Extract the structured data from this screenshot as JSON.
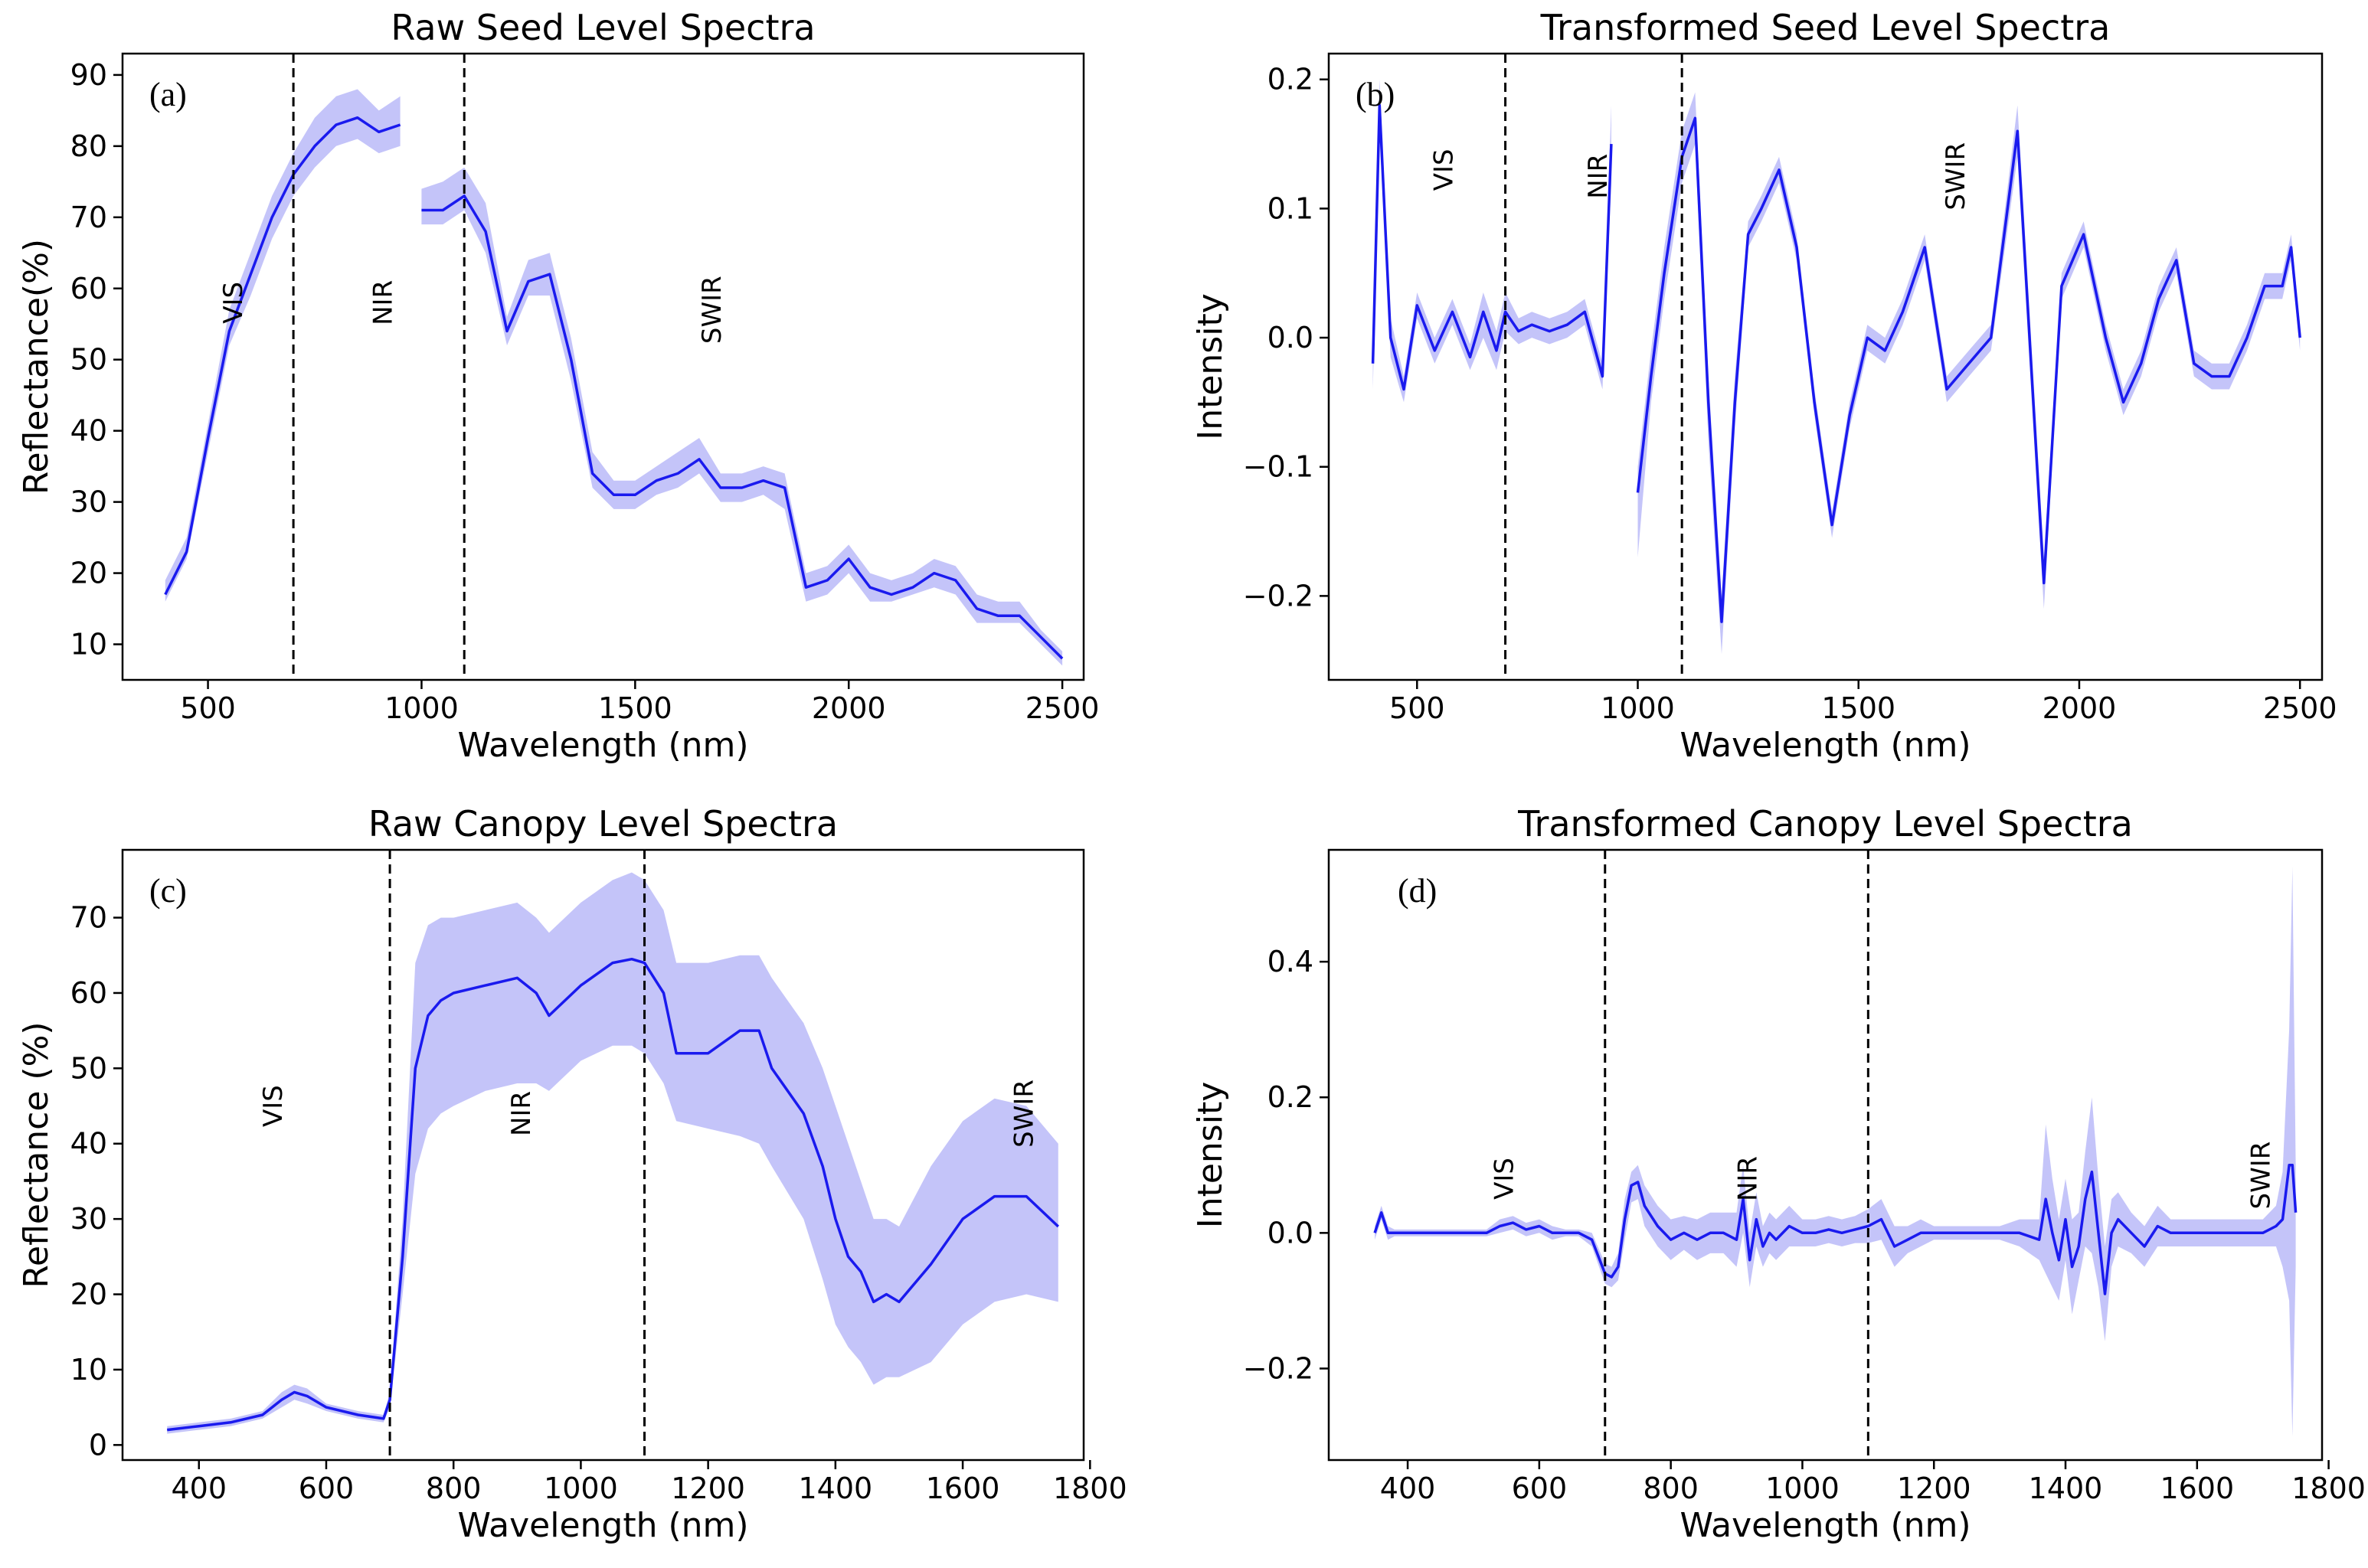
{
  "colors": {
    "line": "#1a1aee",
    "band": "#5555ee"
  },
  "chart_data": [
    {
      "id": "a",
      "type": "line",
      "title": "Raw Seed Level Spectra",
      "panel_label": "(a)",
      "xlabel": "Wavelength (nm)",
      "ylabel": "Reflectance(%)",
      "xlim": [
        300,
        2550
      ],
      "ylim": [
        5,
        93
      ],
      "xticks": [
        500,
        1000,
        1500,
        2000,
        2500
      ],
      "yticks": [
        10,
        20,
        30,
        40,
        50,
        60,
        70,
        80,
        90
      ],
      "vlines": [
        700,
        1100
      ],
      "regions": [
        {
          "label": "VIS",
          "x": 580,
          "y": 58
        },
        {
          "label": "NIR",
          "x": 930,
          "y": 58
        },
        {
          "label": "SWIR",
          "x": 1700,
          "y": 57
        }
      ],
      "series": [
        {
          "x": [
            400,
            450,
            500,
            550,
            600,
            650,
            700,
            750,
            800,
            850,
            900,
            950
          ],
          "mean": [
            17,
            23,
            39,
            54,
            62,
            70,
            76,
            80,
            83,
            84,
            82,
            83
          ],
          "lower": [
            16,
            22,
            37,
            52,
            59,
            67,
            73,
            77,
            80,
            81,
            79,
            80
          ],
          "upper": [
            19,
            25,
            41,
            57,
            65,
            73,
            79,
            84,
            87,
            88,
            85,
            87
          ]
        },
        {
          "x": [
            1000,
            1050,
            1100,
            1150,
            1200,
            1250,
            1300,
            1350,
            1400,
            1450,
            1500,
            1550,
            1600,
            1650,
            1700,
            1750,
            1800,
            1850,
            1900,
            1950,
            2000,
            2050,
            2100,
            2150,
            2200,
            2250,
            2300,
            2350,
            2400,
            2450,
            2500
          ],
          "mean": [
            71,
            71,
            73,
            68,
            54,
            61,
            62,
            50,
            34,
            31,
            31,
            33,
            34,
            36,
            32,
            32,
            33,
            32,
            18,
            19,
            22,
            18,
            17,
            18,
            20,
            19,
            15,
            14,
            14,
            11,
            8
          ],
          "lower": [
            69,
            69,
            71,
            65,
            52,
            59,
            59,
            47,
            32,
            29,
            29,
            31,
            32,
            34,
            30,
            30,
            31,
            29,
            16,
            17,
            20,
            16,
            16,
            17,
            18,
            17,
            13,
            13,
            13,
            10,
            7
          ],
          "upper": [
            74,
            75,
            77,
            72,
            56,
            64,
            65,
            53,
            37,
            33,
            33,
            35,
            37,
            39,
            34,
            34,
            35,
            34,
            20,
            21,
            24,
            20,
            19,
            20,
            22,
            21,
            17,
            16,
            16,
            12,
            9
          ]
        }
      ]
    },
    {
      "id": "b",
      "type": "line",
      "title": "Transformed Seed Level Spectra",
      "panel_label": "(b)",
      "xlabel": "Wavelength (nm)",
      "ylabel": "Intensity",
      "xlim": [
        300,
        2550
      ],
      "ylim": [
        -0.265,
        0.22
      ],
      "xticks": [
        500,
        1000,
        1500,
        2000,
        2500
      ],
      "yticks": [
        -0.2,
        -0.1,
        0.0,
        0.1,
        0.2
      ],
      "vlines": [
        700,
        1100
      ],
      "regions": [
        {
          "label": "VIS",
          "x": 580,
          "y": 0.13
        },
        {
          "label": "NIR",
          "x": 930,
          "y": 0.125
        },
        {
          "label": "SWIR",
          "x": 1740,
          "y": 0.125
        }
      ],
      "series": [
        {
          "x": [
            400,
            415,
            440,
            470,
            500,
            540,
            580,
            620,
            650,
            680,
            700,
            730,
            760,
            800,
            840,
            880,
            920,
            940
          ],
          "mean": [
            -0.02,
            0.18,
            0.0,
            -0.04,
            0.025,
            -0.01,
            0.02,
            -0.015,
            0.02,
            -0.01,
            0.02,
            0.005,
            0.01,
            0.005,
            0.01,
            0.02,
            -0.03,
            0.15
          ],
          "lower": [
            -0.04,
            0.16,
            -0.015,
            -0.05,
            0.015,
            -0.02,
            0.01,
            -0.025,
            0.0,
            -0.025,
            0.005,
            -0.005,
            0.0,
            -0.005,
            0.0,
            0.01,
            -0.04,
            0.12
          ],
          "upper": [
            0.0,
            0.2,
            0.015,
            -0.03,
            0.035,
            0.0,
            0.03,
            -0.005,
            0.035,
            0.005,
            0.035,
            0.015,
            0.02,
            0.015,
            0.02,
            0.03,
            -0.02,
            0.18
          ]
        },
        {
          "x": [
            1000,
            1030,
            1060,
            1100,
            1130,
            1160,
            1190,
            1220,
            1250,
            1280,
            1320,
            1360,
            1400,
            1440,
            1480,
            1520,
            1560,
            1600,
            1650,
            1700,
            1750,
            1800,
            1860,
            1920,
            1960,
            2010,
            2060,
            2100,
            2140,
            2180,
            2220,
            2260,
            2300,
            2340,
            2380,
            2420,
            2460,
            2480,
            2500
          ],
          "mean": [
            -0.12,
            -0.03,
            0.05,
            0.14,
            0.17,
            -0.05,
            -0.22,
            -0.05,
            0.08,
            0.1,
            0.13,
            0.07,
            -0.05,
            -0.145,
            -0.06,
            0.0,
            -0.01,
            0.02,
            0.07,
            -0.04,
            -0.02,
            0.0,
            0.16,
            -0.19,
            0.04,
            0.08,
            0.0,
            -0.05,
            -0.02,
            0.03,
            0.06,
            -0.02,
            -0.03,
            -0.03,
            0.0,
            0.04,
            0.04,
            0.07,
            0.0
          ],
          "lower": [
            -0.17,
            -0.05,
            0.03,
            0.12,
            0.15,
            -0.08,
            -0.245,
            -0.07,
            0.07,
            0.09,
            0.12,
            0.06,
            -0.06,
            -0.155,
            -0.07,
            -0.01,
            -0.02,
            0.01,
            0.06,
            -0.05,
            -0.03,
            -0.01,
            0.14,
            -0.21,
            0.03,
            0.07,
            -0.01,
            -0.06,
            -0.03,
            0.02,
            0.05,
            -0.03,
            -0.04,
            -0.04,
            -0.01,
            0.03,
            0.03,
            0.06,
            -0.01
          ],
          "upper": [
            -0.1,
            -0.01,
            0.07,
            0.16,
            0.19,
            -0.03,
            -0.2,
            -0.03,
            0.09,
            0.11,
            0.14,
            0.08,
            -0.04,
            -0.135,
            -0.05,
            0.01,
            0.0,
            0.03,
            0.08,
            -0.03,
            -0.01,
            0.01,
            0.18,
            -0.17,
            0.05,
            0.09,
            0.01,
            -0.04,
            -0.01,
            0.04,
            0.07,
            -0.01,
            -0.02,
            -0.02,
            0.01,
            0.05,
            0.05,
            0.08,
            0.01
          ]
        }
      ]
    },
    {
      "id": "c",
      "type": "line",
      "title": "Raw Canopy Level Spectra",
      "panel_label": "(c)",
      "xlabel": "Wavelength (nm)",
      "ylabel": "Reflectance (%)",
      "xlim": [
        280,
        1790
      ],
      "ylim": [
        -2,
        79
      ],
      "xticks": [
        400,
        600,
        800,
        1000,
        1200,
        1400,
        1600,
        1800
      ],
      "yticks": [
        0,
        10,
        20,
        30,
        40,
        50,
        60,
        70
      ],
      "vlines": [
        700,
        1100
      ],
      "regions": [
        {
          "label": "VIS",
          "x": 530,
          "y": 45
        },
        {
          "label": "NIR",
          "x": 920,
          "y": 44
        },
        {
          "label": "SWIR",
          "x": 1710,
          "y": 44
        }
      ],
      "series": [
        {
          "x": [
            350,
            400,
            450,
            500,
            530,
            550,
            570,
            600,
            650,
            690,
            700,
            720,
            740,
            760,
            780,
            800,
            850,
            900,
            930,
            950,
            1000,
            1050,
            1080,
            1100,
            1130,
            1150,
            1200,
            1250,
            1280,
            1300,
            1350,
            1380,
            1400,
            1420,
            1440,
            1460,
            1480,
            1500,
            1550,
            1600,
            1650,
            1700,
            1750
          ],
          "mean": [
            2,
            2.5,
            3,
            4,
            6,
            7,
            6.5,
            5,
            4,
            3.5,
            6,
            25,
            50,
            57,
            59,
            60,
            61,
            62,
            60,
            57,
            61,
            64,
            64.5,
            64,
            60,
            52,
            52,
            55,
            55,
            50,
            44,
            37,
            30,
            25,
            23,
            19,
            20,
            19,
            24,
            30,
            33,
            33,
            29
          ],
          "lower": [
            1.5,
            2,
            2.5,
            3.5,
            5,
            6,
            5.5,
            4.5,
            3.5,
            3,
            5,
            20,
            36,
            42,
            44,
            45,
            47,
            48,
            48,
            47,
            51,
            53,
            53,
            52,
            48,
            43,
            42,
            41,
            40,
            37,
            30,
            22,
            16,
            13,
            11,
            8,
            9,
            9,
            11,
            16,
            19,
            20,
            19
          ],
          "upper": [
            2.5,
            3,
            3.5,
            4.5,
            7,
            8,
            7.5,
            5.5,
            4.5,
            4,
            7,
            30,
            64,
            69,
            70,
            70,
            71,
            72,
            70,
            68,
            72,
            75,
            76,
            75,
            71,
            64,
            64,
            65,
            65,
            62,
            56,
            50,
            45,
            40,
            35,
            30,
            30,
            29,
            37,
            43,
            46,
            45,
            40
          ]
        }
      ]
    },
    {
      "id": "d",
      "type": "line",
      "title": "Transformed Canopy Level Spectra",
      "panel_label": "(d)",
      "xlabel": "Wavelength (nm)",
      "ylabel": "Intensity",
      "xlim": [
        280,
        1790
      ],
      "ylim": [
        -0.335,
        0.565
      ],
      "xticks": [
        400,
        600,
        800,
        1000,
        1200,
        1400,
        1600,
        1800
      ],
      "yticks": [
        -0.2,
        0.0,
        0.2,
        0.4
      ],
      "vlines": [
        700,
        1100
      ],
      "regions": [
        {
          "label": "VIS",
          "x": 560,
          "y": 0.08
        },
        {
          "label": "NIR",
          "x": 930,
          "y": 0.08
        },
        {
          "label": "SWIR",
          "x": 1710,
          "y": 0.085
        }
      ],
      "series": [
        {
          "x": [
            350,
            360,
            370,
            380,
            400,
            450,
            500,
            520,
            540,
            560,
            580,
            600,
            620,
            640,
            660,
            680,
            700,
            710,
            720,
            730,
            740,
            750,
            760,
            780,
            800,
            820,
            840,
            860,
            880,
            900,
            910,
            920,
            930,
            940,
            950,
            960,
            980,
            1000,
            1020,
            1040,
            1060,
            1080,
            1100,
            1120,
            1140,
            1160,
            1180,
            1200,
            1250,
            1300,
            1330,
            1360,
            1370,
            1380,
            1390,
            1400,
            1410,
            1420,
            1430,
            1440,
            1450,
            1460,
            1470,
            1480,
            1500,
            1520,
            1540,
            1560,
            1580,
            1600,
            1650,
            1700,
            1720,
            1730,
            1740,
            1745,
            1750
          ],
          "mean": [
            0.0,
            0.03,
            0.0,
            0.0,
            0.0,
            0.0,
            0.0,
            0.0,
            0.01,
            0.015,
            0.005,
            0.01,
            0.0,
            0.0,
            0.0,
            -0.01,
            -0.06,
            -0.065,
            -0.05,
            0.02,
            0.07,
            0.075,
            0.04,
            0.01,
            -0.01,
            0.0,
            -0.01,
            0.0,
            0.0,
            -0.01,
            0.05,
            -0.04,
            0.02,
            -0.02,
            0.0,
            -0.01,
            0.01,
            0.0,
            0.0,
            0.005,
            0.0,
            0.005,
            0.01,
            0.02,
            -0.02,
            -0.01,
            0.0,
            0.0,
            0.0,
            0.0,
            0.0,
            -0.01,
            0.05,
            0.0,
            -0.04,
            0.02,
            -0.05,
            -0.02,
            0.05,
            0.09,
            0.0,
            -0.09,
            0.0,
            0.02,
            0.0,
            -0.02,
            0.01,
            0.0,
            0.0,
            0.0,
            0.0,
            0.0,
            0.01,
            0.02,
            0.1,
            0.1,
            0.03
          ],
          "lower": [
            -0.01,
            0.02,
            -0.01,
            -0.005,
            -0.005,
            -0.005,
            -0.005,
            -0.005,
            0.0,
            0.005,
            -0.005,
            0.0,
            -0.01,
            -0.005,
            -0.005,
            -0.02,
            -0.075,
            -0.08,
            -0.07,
            -0.01,
            0.045,
            0.05,
            0.01,
            -0.02,
            -0.04,
            -0.025,
            -0.04,
            -0.03,
            -0.03,
            -0.05,
            0.0,
            -0.08,
            -0.02,
            -0.05,
            -0.03,
            -0.04,
            -0.02,
            -0.02,
            -0.02,
            -0.015,
            -0.02,
            -0.015,
            -0.015,
            -0.01,
            -0.05,
            -0.03,
            -0.02,
            -0.01,
            -0.01,
            -0.01,
            -0.02,
            -0.04,
            -0.06,
            -0.08,
            -0.1,
            -0.04,
            -0.12,
            -0.07,
            -0.02,
            -0.03,
            -0.08,
            -0.16,
            -0.05,
            -0.02,
            -0.03,
            -0.05,
            -0.02,
            -0.02,
            -0.02,
            -0.02,
            -0.02,
            -0.02,
            -0.02,
            -0.05,
            -0.1,
            -0.3,
            -0.05
          ],
          "upper": [
            0.01,
            0.04,
            0.01,
            0.005,
            0.005,
            0.005,
            0.005,
            0.005,
            0.02,
            0.025,
            0.015,
            0.02,
            0.01,
            0.005,
            0.005,
            0.0,
            -0.045,
            -0.05,
            -0.03,
            0.05,
            0.09,
            0.1,
            0.07,
            0.04,
            0.02,
            0.025,
            0.02,
            0.03,
            0.03,
            0.03,
            0.1,
            0.0,
            0.06,
            0.01,
            0.03,
            0.02,
            0.04,
            0.02,
            0.02,
            0.025,
            0.02,
            0.025,
            0.035,
            0.05,
            0.01,
            0.01,
            0.02,
            0.01,
            0.01,
            0.01,
            0.02,
            0.02,
            0.16,
            0.08,
            0.02,
            0.08,
            0.02,
            0.03,
            0.12,
            0.2,
            0.08,
            -0.02,
            0.05,
            0.06,
            0.03,
            0.01,
            0.04,
            0.02,
            0.02,
            0.02,
            0.02,
            0.02,
            0.04,
            0.09,
            0.3,
            0.54,
            0.1
          ]
        }
      ]
    }
  ]
}
